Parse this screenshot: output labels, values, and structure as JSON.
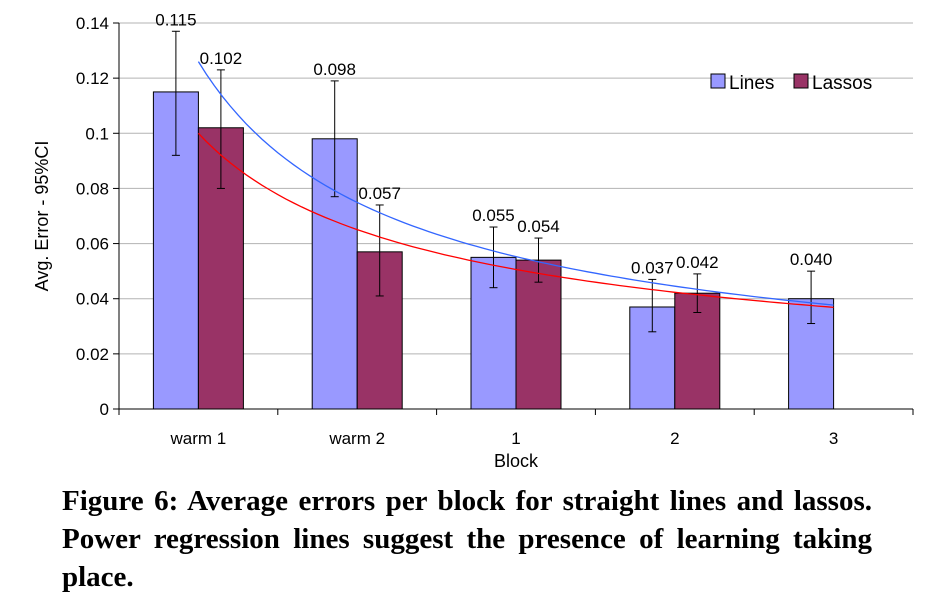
{
  "chart_data": {
    "type": "bar",
    "categories": [
      "warm 1",
      "warm 2",
      "1",
      "2",
      "3"
    ],
    "series": [
      {
        "name": "Lines",
        "color": "#9999ff",
        "values": [
          0.115,
          0.098,
          0.055,
          0.037,
          0.04
        ],
        "labels": [
          "0.115",
          "0.098",
          "0.055",
          "0.037",
          "0.040"
        ],
        "ci_low": [
          0.092,
          0.077,
          0.044,
          0.028,
          0.031
        ],
        "ci_high": [
          0.137,
          0.119,
          0.066,
          0.047,
          0.05
        ]
      },
      {
        "name": "Lassos",
        "color": "#993366",
        "values": [
          0.102,
          0.057,
          0.054,
          0.042,
          null
        ],
        "labels": [
          "0.102",
          "0.057",
          "0.054",
          "0.042",
          ""
        ],
        "ci_low": [
          0.08,
          0.041,
          0.046,
          0.035,
          null
        ],
        "ci_high": [
          0.123,
          0.074,
          0.062,
          0.049,
          null
        ]
      }
    ],
    "trendlines": [
      {
        "series": "Lines",
        "type": "power",
        "color": "#3366ff",
        "a": 0.126,
        "b": -0.75,
        "x_range": [
          1,
          5
        ]
      },
      {
        "series": "Lassos",
        "type": "power",
        "color": "#ff0000",
        "a": 0.1,
        "b": -0.62,
        "x_range": [
          1,
          5
        ]
      }
    ],
    "xlabel": "Block",
    "ylabel": "Avg. Error - 95%CI",
    "ylim": [
      0,
      0.14
    ],
    "yticks": [
      "0",
      "0.02",
      "0.04",
      "0.06",
      "0.08",
      "0.1",
      "0.12",
      "0.14"
    ],
    "grid": true,
    "legend_position": "top-right"
  },
  "caption": "Figure 6: Average errors per block for straight lines and lassos. Power regression lines suggest the presence of learning taking place."
}
